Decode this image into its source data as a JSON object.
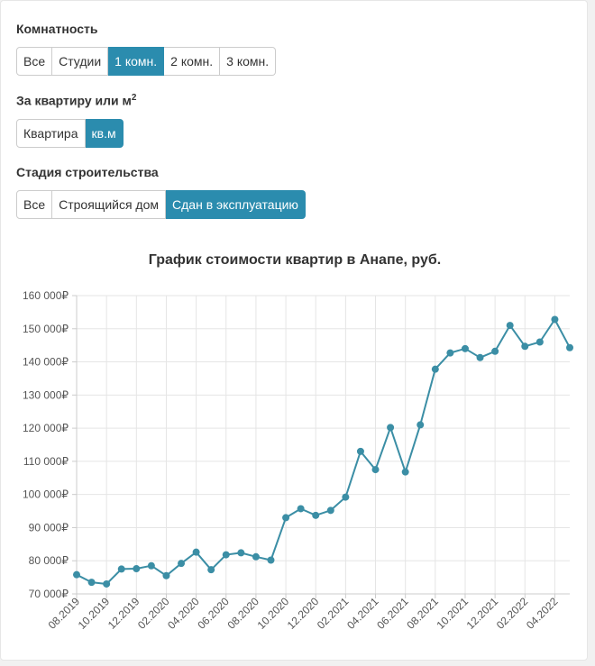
{
  "filters": {
    "rooms": {
      "label": "Комнатность",
      "options": [
        "Все",
        "Студии",
        "1 комн.",
        "2 комн.",
        "3 комн."
      ],
      "active": 2
    },
    "unit": {
      "label_text": "За квартиру или м",
      "label_sup": "2",
      "options": [
        "Квартира",
        "кв.м"
      ],
      "active": 1
    },
    "stage": {
      "label": "Стадия строительства",
      "options": [
        "Все",
        "Строящийся дом",
        "Сдан в эксплуатацию"
      ],
      "active": 2
    }
  },
  "chart_data": {
    "type": "line",
    "title": "График стоимости квартир в Анапе, руб.",
    "xlabel": "",
    "ylabel": "",
    "ylim": [
      70000,
      160000
    ],
    "yticks": [
      70000,
      80000,
      90000,
      100000,
      110000,
      120000,
      130000,
      140000,
      150000,
      160000
    ],
    "ytick_labels": [
      "70 000₽",
      "80 000₽",
      "90 000₽",
      "100 000₽",
      "110 000₽",
      "120 000₽",
      "130 000₽",
      "140 000₽",
      "150 000₽",
      "160 000₽"
    ],
    "x": [
      "08.2019",
      "09.2019",
      "10.2019",
      "11.2019",
      "12.2019",
      "01.2020",
      "02.2020",
      "03.2020",
      "04.2020",
      "05.2020",
      "06.2020",
      "07.2020",
      "08.2020",
      "09.2020",
      "10.2020",
      "11.2020",
      "12.2020",
      "01.2021",
      "02.2021",
      "03.2021",
      "04.2021",
      "05.2021",
      "06.2021",
      "07.2021",
      "08.2021",
      "09.2021",
      "10.2021",
      "11.2021",
      "12.2021",
      "01.2022",
      "02.2022",
      "03.2022",
      "04.2022",
      "05.2022"
    ],
    "xtick_labels": [
      "08.2019",
      "10.2019",
      "12.2019",
      "02.2020",
      "04.2020",
      "06.2020",
      "08.2020",
      "10.2020",
      "12.2020",
      "02.2021",
      "04.2021",
      "06.2021",
      "08.2021",
      "10.2021",
      "12.2021",
      "02.2022",
      "04.2022"
    ],
    "values": [
      75800,
      73500,
      73000,
      77500,
      77600,
      78500,
      75500,
      79200,
      82600,
      77300,
      81800,
      82400,
      81200,
      80200,
      93000,
      95700,
      93700,
      95200,
      99200,
      113000,
      107500,
      120200,
      106800,
      121000,
      137800,
      142700,
      144000,
      141300,
      143200,
      151000,
      144700,
      146000,
      152800,
      144300
    ],
    "grid": true,
    "legend": "none",
    "line_color": "#3b8ea5",
    "grid_color": "#e5e5e5",
    "axis_color": "#cccccc"
  }
}
